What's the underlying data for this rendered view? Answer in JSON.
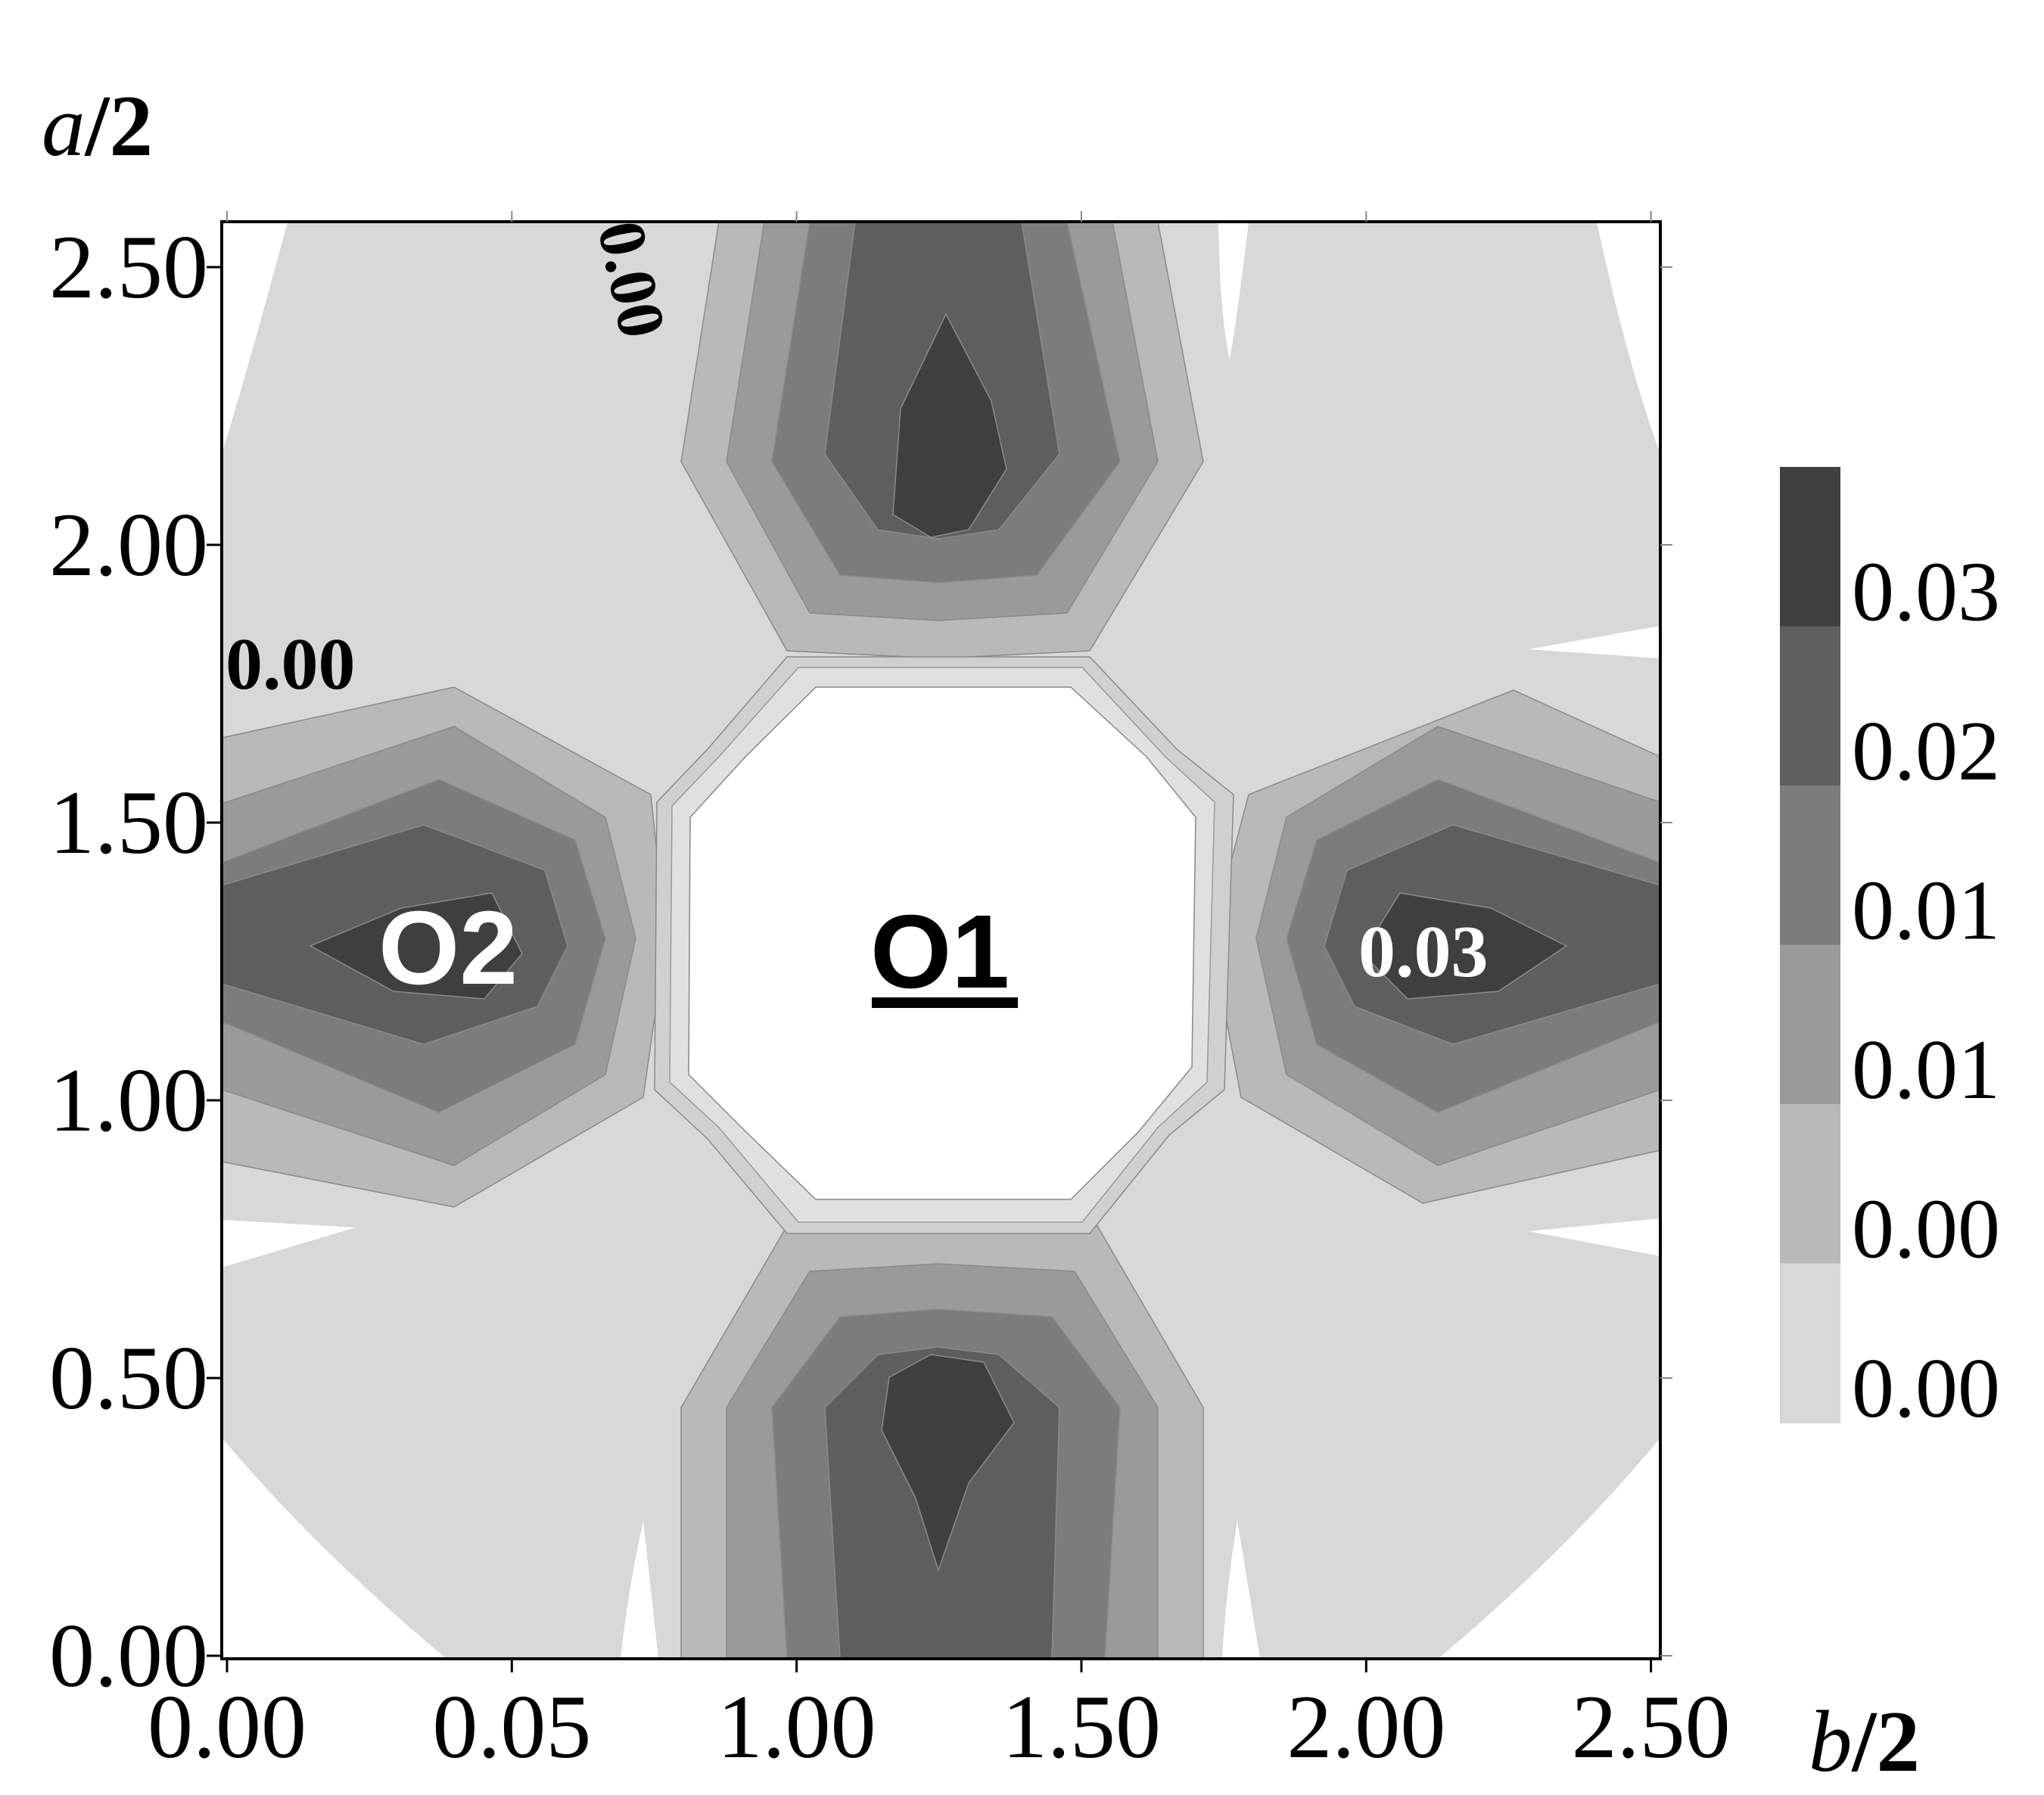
{
  "chart_data": {
    "type": "heatmap",
    "subtype": "filled-contour",
    "title": "",
    "ylabel": {
      "italic": "a",
      "rest": "/2"
    },
    "xlabel": {
      "italic": "b",
      "rest": "/2"
    },
    "xlim": [
      0.0,
      2.57
    ],
    "ylim": [
      0.0,
      2.57
    ],
    "x_tick_labels": [
      "0.00",
      "0.05",
      "1.00",
      "1.50",
      "2.00",
      "2.50"
    ],
    "y_tick_labels": [
      "0.00",
      "0.50",
      "1.00",
      "1.50",
      "2.00",
      "2.50"
    ],
    "colorbar": {
      "tick_labels": [
        "0.03",
        "0.02",
        "0.01",
        "0.01",
        "0.00",
        "0.00"
      ],
      "levels": 6,
      "colors": [
        "#3f3f3f",
        "#5e5e5e",
        "#7c7c7c",
        "#9a9a9a",
        "#b9b9b9",
        "#d8d8d8"
      ]
    },
    "contour_labels": [
      "0.00",
      "0.00",
      "0.03"
    ],
    "site_labels": [
      {
        "text": "O2",
        "x": 0.42,
        "y": 1.27,
        "color": "#ffffff",
        "underline": false
      },
      {
        "text": "O1",
        "x": 1.29,
        "y": 1.25,
        "color": "#000000",
        "underline": true
      }
    ],
    "lobes": [
      {
        "name": "top",
        "center": [
          1.29,
          2.57
        ],
        "direction": "down",
        "peak": [
          1.29,
          2.2
        ]
      },
      {
        "name": "bottom",
        "center": [
          1.29,
          0.0
        ],
        "direction": "up",
        "peak": [
          1.29,
          0.37
        ]
      },
      {
        "name": "left",
        "center": [
          0.0,
          1.29
        ],
        "direction": "right",
        "peak": [
          0.42,
          1.29
        ]
      },
      {
        "name": "right",
        "center": [
          2.57,
          1.29
        ],
        "direction": "left",
        "peak": [
          2.12,
          1.29
        ]
      }
    ],
    "grid": false,
    "legend_position": "right"
  }
}
